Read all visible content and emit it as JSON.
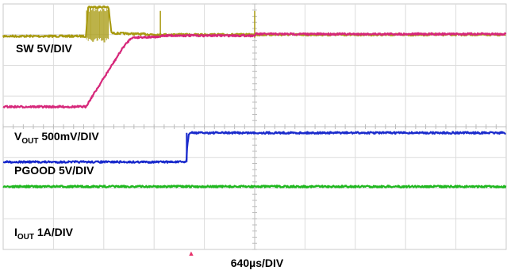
{
  "chart_data": {
    "type": "line",
    "title": "",
    "xlabel": "640µs/DIV",
    "x_unit": "µs",
    "x_per_div": 640,
    "divisions": {
      "x": 10,
      "y": 8
    },
    "grid": true,
    "trigger_marker": "▲",
    "series": [
      {
        "name": "SW",
        "label": "SW 5V/DIV",
        "color": "#a89a10",
        "x": [
          0,
          1050,
          1055,
          1080,
          1340,
          1370,
          1380,
          2000,
          6400
        ],
        "y_div": [
          2.95,
          2.95,
          3.0,
          3.9,
          3.9,
          3.2,
          3.05,
          3.0,
          3.0
        ]
      },
      {
        "name": "VOUT",
        "label_main": "V",
        "label_sub": "OUT",
        "label_rest": " 500mV/DIV",
        "color": "#d6277a",
        "x": [
          0,
          1050,
          1530,
          1630,
          1760,
          2000,
          2010,
          3200,
          3210,
          6400
        ],
        "y_div": [
          0.65,
          0.65,
          2.6,
          2.9,
          2.92,
          2.92,
          2.97,
          2.97,
          3.02,
          3.02
        ]
      },
      {
        "name": "PGOOD",
        "label": "PGOOD 5V/DIV",
        "color": "#1a2bcc",
        "x": [
          0,
          2330,
          2340,
          2360,
          2380,
          6400
        ],
        "y_div": [
          -1.15,
          -1.15,
          -0.7,
          -0.25,
          -0.2,
          -0.2
        ]
      },
      {
        "name": "IOUT",
        "label_main": "I",
        "label_sub": "OUT",
        "label_rest": " 1A/DIV",
        "color": "#1fb81f",
        "x": [
          0,
          6400
        ],
        "y_div": [
          -1.95,
          -1.95
        ]
      }
    ]
  }
}
